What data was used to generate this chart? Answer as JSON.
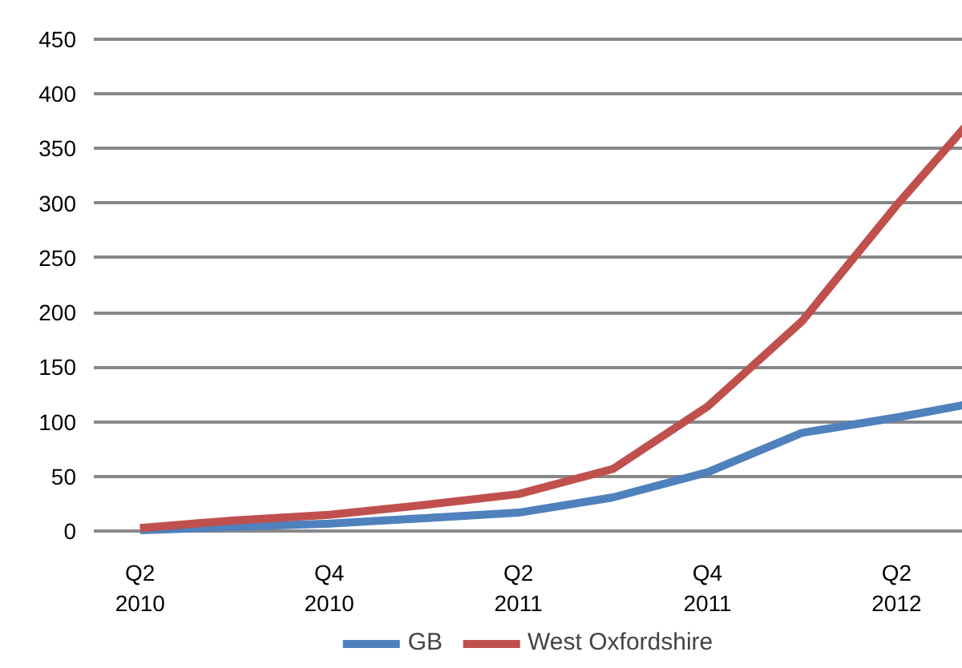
{
  "chart_data": {
    "type": "line",
    "categories": [
      "Q2\n2010",
      null,
      "Q4\n2010",
      null,
      "Q2\n2011",
      null,
      "Q4\n2011",
      null,
      "Q2\n2012",
      null
    ],
    "series": [
      {
        "name": "GB",
        "color": "#4f81bd",
        "values": [
          1,
          4,
          7,
          12,
          17,
          31,
          54,
          90,
          104,
          120
        ]
      },
      {
        "name": "West Oxfordshire",
        "color": "#c0504d",
        "values": [
          3,
          10,
          15,
          24,
          34,
          57,
          114,
          192,
          298,
          397
        ]
      }
    ],
    "ylim": [
      0,
      450
    ],
    "yticks": [
      0,
      50,
      100,
      150,
      200,
      250,
      300,
      350,
      400,
      450
    ],
    "grid": "y",
    "legend": "bottom",
    "marker": "none",
    "line_style": "solid"
  }
}
